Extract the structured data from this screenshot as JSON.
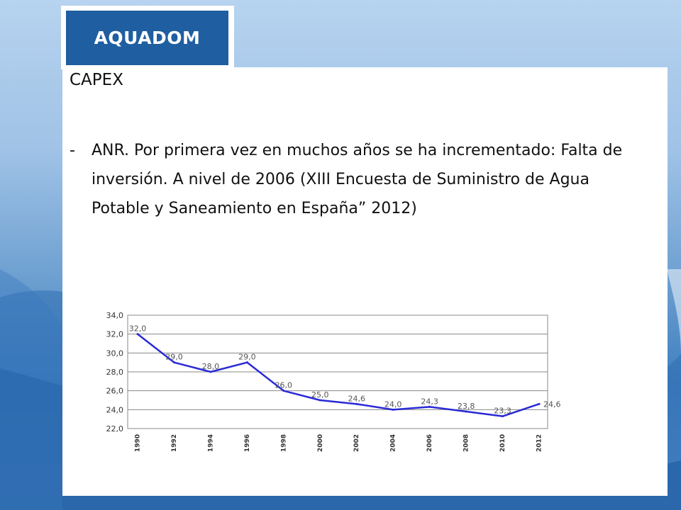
{
  "logo": {
    "text": "AQUADOM"
  },
  "slide": {
    "heading": "CAPEX",
    "bullet_marker": "-",
    "bullet_text": "ANR. Por primera vez en muchos años se ha incrementado: Falta de inversión. A nivel de 2006 (XIII Encuesta de Suministro de Agua Potable y Saneamiento en España” 2012)"
  },
  "colors": {
    "line": "#2a2ad6",
    "grid": "#8a8a8a",
    "logo_bg": "#1f5ea0"
  },
  "chart_data": {
    "type": "line",
    "title": "",
    "xlabel": "",
    "ylabel": "",
    "categories": [
      "1990",
      "1992",
      "1994",
      "1996",
      "1998",
      "2000",
      "2002",
      "2004",
      "2006",
      "2008",
      "2010",
      "2012"
    ],
    "values": [
      32.0,
      29.0,
      28.0,
      29.0,
      26.0,
      25.0,
      24.6,
      24.0,
      24.3,
      23.8,
      23.3,
      24.6
    ],
    "data_labels": [
      "32,0",
      "29,0",
      "28,0",
      "29,0",
      "26,0",
      "25,0",
      "24,6",
      "24,0",
      "24,3",
      "23,8",
      "23,3",
      "24,6"
    ],
    "yticks": [
      "34,0",
      "32,0",
      "30,0",
      "28,0",
      "26,0",
      "24,0",
      "22,0"
    ],
    "ylim": [
      22,
      34
    ],
    "grid": true,
    "legend": "none"
  }
}
